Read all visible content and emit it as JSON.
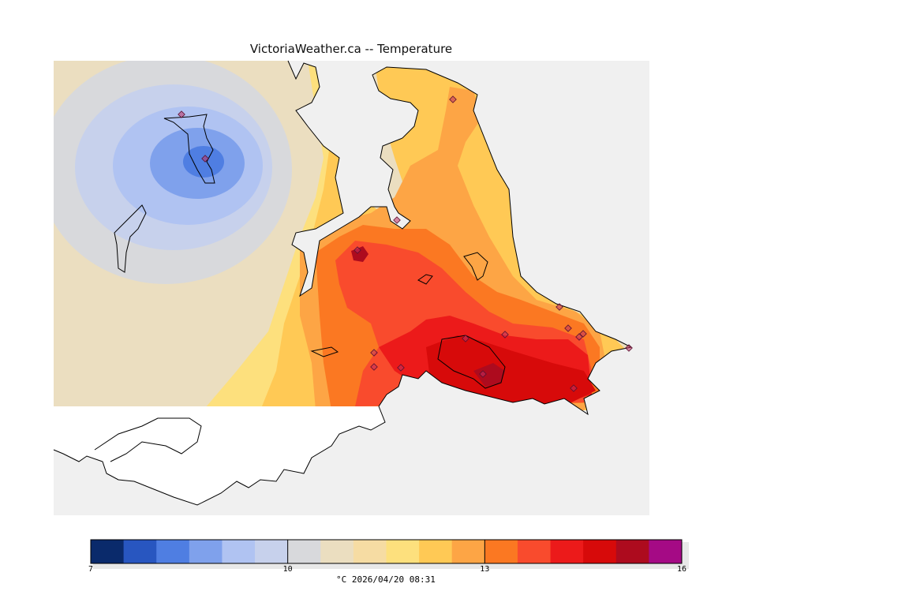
{
  "title": "VictoriaWeather.ca -- Temperature",
  "legend": {
    "min": 7,
    "max": 16,
    "tick_labels": [
      "7",
      "10",
      "13",
      "16"
    ],
    "tick_values": [
      7,
      10,
      13,
      16
    ],
    "colors": [
      "#0a2a6b",
      "#2856c0",
      "#4f7ee2",
      "#7fa1ec",
      "#b0c3f2",
      "#c7d1ec",
      "#d8d9dc",
      "#ebdec0",
      "#f6dca3",
      "#fde07d",
      "#ffc955",
      "#fda545",
      "#fb7822",
      "#f94b2d",
      "#ec1a1a",
      "#d70a0a",
      "#ad0b1e",
      "#a50a85"
    ],
    "caption": "°C  2026/04/20 08:31"
  },
  "map": {
    "ocean_color": "#f0f0f0",
    "no_data_land_color": "#ffffff",
    "station_marker_color": "#c03060",
    "station_count": 17
  }
}
